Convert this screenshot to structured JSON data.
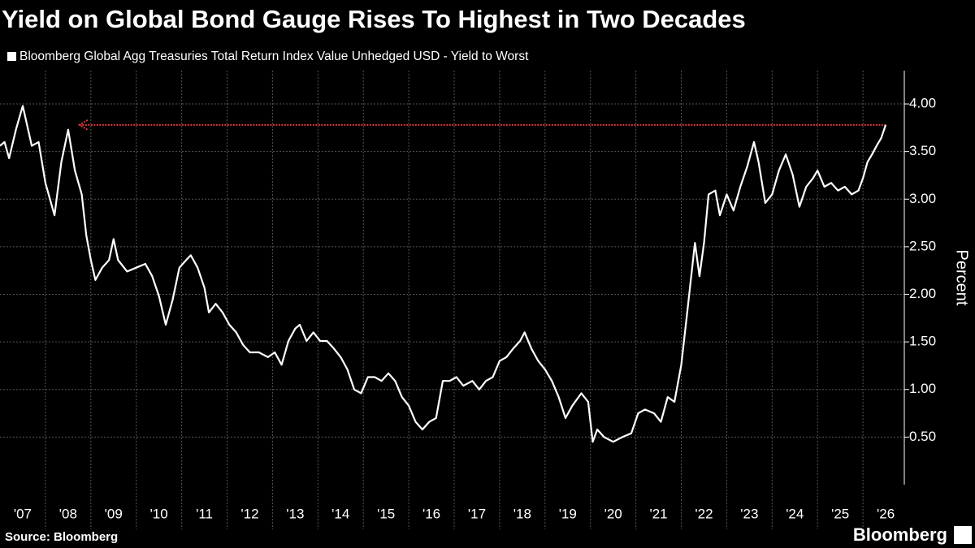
{
  "chart_data": {
    "type": "line",
    "title": "Yield on Global Bond Gauge Rises To Highest in Two Decades",
    "y_label": "Percent",
    "source": "Source: Bloomberg",
    "brand": "Bloomberg",
    "xlim": [
      2007,
      2026.91
    ],
    "ylim": [
      0,
      4.35
    ],
    "yticks": [
      {
        "value": 0.5,
        "label": "0.50"
      },
      {
        "value": 1,
        "label": "1.00"
      },
      {
        "value": 1.5,
        "label": "1.50"
      },
      {
        "value": 2,
        "label": "2.00"
      },
      {
        "value": 2.5,
        "label": "2.50"
      },
      {
        "value": 3,
        "label": "3.00"
      },
      {
        "value": 3.5,
        "label": "3.50"
      },
      {
        "value": 4,
        "label": "4.00"
      }
    ],
    "xticks": [
      {
        "value": 2007.5,
        "label": "'07"
      },
      {
        "value": 2008.5,
        "label": "'08"
      },
      {
        "value": 2009.5,
        "label": "'09"
      },
      {
        "value": 2010.5,
        "label": "'10"
      },
      {
        "value": 2011.5,
        "label": "'11"
      },
      {
        "value": 2012.5,
        "label": "'12"
      },
      {
        "value": 2013.5,
        "label": "'13"
      },
      {
        "value": 2014.5,
        "label": "'14"
      },
      {
        "value": 2015.5,
        "label": "'15"
      },
      {
        "value": 2016.5,
        "label": "'16"
      },
      {
        "value": 2017.5,
        "label": "'17"
      },
      {
        "value": 2018.5,
        "label": "'18"
      },
      {
        "value": 2019.5,
        "label": "'19"
      },
      {
        "value": 2020.5,
        "label": "'20"
      },
      {
        "value": 2021.5,
        "label": "'21"
      },
      {
        "value": 2022.5,
        "label": "'22"
      },
      {
        "value": 2023.5,
        "label": "'23"
      },
      {
        "value": 2024.5,
        "label": "'24"
      },
      {
        "value": 2025.5,
        "label": "'25"
      },
      {
        "value": 2026.5,
        "label": "'26"
      }
    ],
    "xgrid": [
      2008,
      2009,
      2010,
      2011,
      2012,
      2013,
      2014,
      2015,
      2016,
      2017,
      2018,
      2019,
      2020,
      2021,
      2022,
      2023,
      2024,
      2025,
      2026
    ],
    "grid": true,
    "reference_line": {
      "value": 3.78,
      "x": [
        2008.75,
        2026.5
      ],
      "color": "#e0393e"
    },
    "series": [
      {
        "name": "Bloomberg Global Agg Treasuries Total Return Index Value Unhedged USD - Yield to Worst",
        "color": "#ffffff",
        "x": [
          2007.0,
          2007.1,
          2007.2,
          2007.35,
          2007.5,
          2007.7,
          2007.85,
          2008.0,
          2008.1,
          2008.2,
          2008.35,
          2008.5,
          2008.65,
          2008.8,
          2008.9,
          2009.0,
          2009.1,
          2009.25,
          2009.4,
          2009.5,
          2009.6,
          2009.8,
          2010.0,
          2010.2,
          2010.35,
          2010.5,
          2010.65,
          2010.8,
          2010.95,
          2011.1,
          2011.2,
          2011.35,
          2011.5,
          2011.6,
          2011.75,
          2011.9,
          2012.05,
          2012.2,
          2012.35,
          2012.5,
          2012.7,
          2012.9,
          2013.05,
          2013.2,
          2013.35,
          2013.5,
          2013.6,
          2013.75,
          2013.9,
          2014.05,
          2014.2,
          2014.35,
          2014.5,
          2014.65,
          2014.8,
          2014.95,
          2015.1,
          2015.25,
          2015.4,
          2015.55,
          2015.7,
          2015.85,
          2016.0,
          2016.15,
          2016.3,
          2016.45,
          2016.6,
          2016.75,
          2016.9,
          2017.05,
          2017.2,
          2017.4,
          2017.55,
          2017.7,
          2017.85,
          2018.0,
          2018.15,
          2018.3,
          2018.45,
          2018.55,
          2018.7,
          2018.85,
          2019.0,
          2019.15,
          2019.3,
          2019.45,
          2019.6,
          2019.8,
          2019.95,
          2020.05,
          2020.15,
          2020.3,
          2020.5,
          2020.7,
          2020.9,
          2021.05,
          2021.2,
          2021.4,
          2021.55,
          2021.7,
          2021.85,
          2022.0,
          2022.1,
          2022.2,
          2022.3,
          2022.4,
          2022.5,
          2022.6,
          2022.75,
          2022.85,
          2023.0,
          2023.15,
          2023.3,
          2023.45,
          2023.6,
          2023.7,
          2023.85,
          2024.0,
          2024.15,
          2024.3,
          2024.45,
          2024.6,
          2024.75,
          2024.9,
          2025.0,
          2025.15,
          2025.3,
          2025.45,
          2025.6,
          2025.75,
          2025.9,
          2026.0,
          2026.1,
          2026.2,
          2026.3,
          2026.4,
          2026.5
        ],
        "values": [
          3.56,
          3.6,
          3.43,
          3.73,
          3.98,
          3.56,
          3.6,
          3.17,
          3.0,
          2.83,
          3.39,
          3.73,
          3.3,
          3.05,
          2.62,
          2.36,
          2.15,
          2.28,
          2.36,
          2.58,
          2.36,
          2.24,
          2.28,
          2.32,
          2.19,
          1.98,
          1.68,
          1.94,
          2.28,
          2.36,
          2.41,
          2.28,
          2.07,
          1.81,
          1.9,
          1.81,
          1.68,
          1.6,
          1.47,
          1.39,
          1.39,
          1.34,
          1.39,
          1.26,
          1.51,
          1.64,
          1.68,
          1.51,
          1.6,
          1.51,
          1.51,
          1.43,
          1.34,
          1.21,
          1.0,
          0.96,
          1.13,
          1.13,
          1.09,
          1.17,
          1.09,
          0.92,
          0.83,
          0.66,
          0.58,
          0.66,
          0.7,
          1.09,
          1.09,
          1.13,
          1.04,
          1.09,
          1.0,
          1.09,
          1.13,
          1.3,
          1.34,
          1.43,
          1.51,
          1.6,
          1.43,
          1.3,
          1.21,
          1.09,
          0.92,
          0.7,
          0.83,
          0.96,
          0.87,
          0.45,
          0.58,
          0.5,
          0.45,
          0.5,
          0.54,
          0.75,
          0.79,
          0.75,
          0.66,
          0.92,
          0.87,
          1.26,
          1.68,
          2.11,
          2.54,
          2.19,
          2.54,
          3.05,
          3.09,
          2.83,
          3.05,
          2.88,
          3.13,
          3.34,
          3.6,
          3.39,
          2.96,
          3.05,
          3.3,
          3.47,
          3.26,
          2.92,
          3.13,
          3.22,
          3.3,
          3.13,
          3.17,
          3.09,
          3.13,
          3.05,
          3.09,
          3.22,
          3.39,
          3.47,
          3.56,
          3.64,
          3.78
        ]
      }
    ]
  }
}
